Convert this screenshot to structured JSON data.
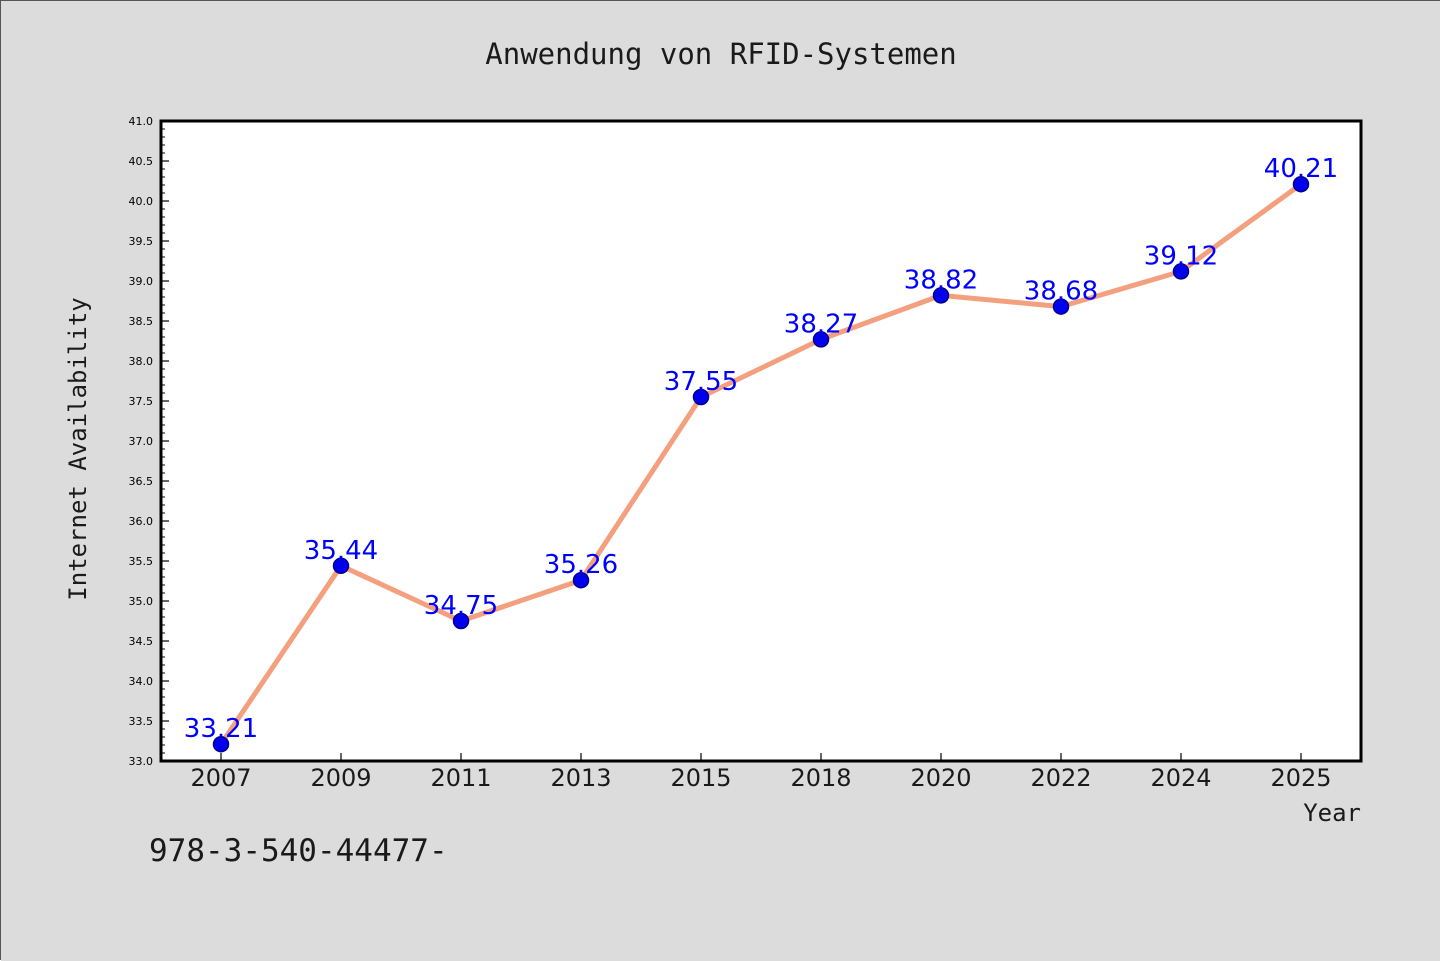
{
  "figure": {
    "background": "#dcdcdc",
    "plot_background": "#ffffff",
    "footer_text": "978-3-540-44477-"
  },
  "chart_data": {
    "type": "line",
    "title": "Anwendung von RFID-Systemen",
    "xlabel": "Year",
    "ylabel": "Internet Availability",
    "categories": [
      "2007",
      "2009",
      "2011",
      "2013",
      "2015",
      "2018",
      "2020",
      "2022",
      "2024",
      "2025"
    ],
    "values": [
      33.21,
      35.44,
      34.75,
      35.26,
      37.55,
      38.27,
      38.82,
      38.68,
      39.12,
      40.21
    ],
    "data_labels": [
      "33.21",
      "35.44",
      "34.75",
      "35.26",
      "37.55",
      "38.27",
      "38.82",
      "38.68",
      "39.12",
      "40.21"
    ],
    "ylim": [
      33.0,
      41.0
    ],
    "yticks": [
      "33.0",
      "33.5",
      "34.0",
      "34.5",
      "35.0",
      "35.5",
      "36.0",
      "36.5",
      "37.0",
      "37.5",
      "38.0",
      "38.5",
      "39.0",
      "39.5",
      "40.0",
      "40.5",
      "41.0"
    ],
    "grid": false,
    "legend": false,
    "colors": {
      "line": "#f4a07f",
      "marker_fill": "#0000ee",
      "marker_edge": "#000088",
      "data_label": "#0000ff",
      "axis": "#000000",
      "text": "#1a1a1a"
    }
  }
}
